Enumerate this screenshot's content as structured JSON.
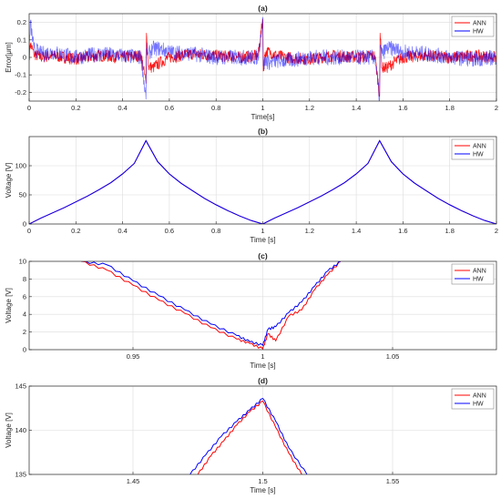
{
  "colors": {
    "ann": "#ff0000",
    "hw": "#0000ff",
    "grid": "#dcdcdc",
    "axis": "#262626"
  },
  "chart_data": [
    {
      "type": "line",
      "title": "(a)",
      "xlabel": "Time[s]",
      "ylabel": "Error[μm]",
      "xlim": [
        0,
        2
      ],
      "ylim": [
        -0.25,
        0.25
      ],
      "xticks": [
        "0",
        "0.2",
        "0.4",
        "0.6",
        "0.8",
        "1",
        "1.2",
        "1.4",
        "1.6",
        "1.8",
        "2"
      ],
      "yticks": [
        "-0.2",
        "-0.1",
        "0",
        "0.1",
        "0.2"
      ],
      "grid": true,
      "legend": "top-right",
      "series": [
        {
          "name": "ANN",
          "x": [
            0,
            0.005,
            0.02,
            0.05,
            0.1,
            0.2,
            0.3,
            0.4,
            0.48,
            0.5,
            0.502,
            0.51,
            0.53,
            0.56,
            0.6,
            0.7,
            0.8,
            0.9,
            0.98,
            1.0,
            1.002,
            1.01,
            1.03,
            1.06,
            1.1,
            1.2,
            1.3,
            1.4,
            1.48,
            1.5,
            1.502,
            1.51,
            1.53,
            1.56,
            1.6,
            1.7,
            1.8,
            1.9,
            2.0
          ],
          "y": [
            0.0,
            0.08,
            0.02,
            0.0,
            0.01,
            -0.01,
            0.01,
            0.0,
            0.01,
            -0.15,
            0.14,
            -0.05,
            -0.06,
            -0.03,
            0.0,
            0.02,
            0.01,
            0.0,
            0.01,
            0.22,
            -0.08,
            0.03,
            0.03,
            0.01,
            0.0,
            -0.01,
            0.01,
            0.0,
            0.01,
            -0.22,
            0.14,
            -0.06,
            -0.06,
            -0.03,
            0.0,
            0.01,
            0.0,
            0.01,
            0.0
          ]
        },
        {
          "name": "HW",
          "x": [
            0,
            0.005,
            0.02,
            0.05,
            0.1,
            0.2,
            0.3,
            0.4,
            0.48,
            0.5,
            0.502,
            0.51,
            0.53,
            0.56,
            0.6,
            0.7,
            0.8,
            0.9,
            0.98,
            1.0,
            1.002,
            1.01,
            1.03,
            1.06,
            1.1,
            1.2,
            1.3,
            1.4,
            1.48,
            1.5,
            1.502,
            1.51,
            1.53,
            1.56,
            1.6,
            1.7,
            1.8,
            1.9,
            2.0
          ],
          "y": [
            0.0,
            0.2,
            0.05,
            0.02,
            0.03,
            0.0,
            0.02,
            0.01,
            0.0,
            -0.24,
            0.05,
            0.02,
            0.05,
            0.05,
            0.03,
            0.02,
            0.0,
            0.0,
            0.0,
            0.23,
            -0.05,
            -0.02,
            -0.03,
            -0.02,
            -0.02,
            0.0,
            0.0,
            0.0,
            0.0,
            -0.24,
            0.06,
            0.02,
            0.05,
            0.05,
            0.03,
            0.02,
            0.0,
            -0.01,
            0.0
          ]
        }
      ]
    },
    {
      "type": "line",
      "title": "(b)",
      "xlabel": "Time [s]",
      "ylabel": "Voltage [V]",
      "xlim": [
        0,
        2
      ],
      "ylim": [
        0,
        150
      ],
      "xticks": [
        "0",
        "0.2",
        "0.4",
        "0.6",
        "0.8",
        "1",
        "1.2",
        "1.4",
        "1.6",
        "1.8",
        "2"
      ],
      "yticks": [
        "0",
        "50",
        "100"
      ],
      "grid": true,
      "legend": "top-right",
      "series": [
        {
          "name": "ANN",
          "x": [
            0,
            0.05,
            0.1,
            0.15,
            0.2,
            0.25,
            0.3,
            0.35,
            0.4,
            0.45,
            0.5,
            0.55,
            0.6,
            0.65,
            0.7,
            0.75,
            0.8,
            0.85,
            0.9,
            0.95,
            1.0,
            1.05,
            1.1,
            1.15,
            1.2,
            1.25,
            1.3,
            1.35,
            1.4,
            1.45,
            1.5,
            1.55,
            1.6,
            1.65,
            1.7,
            1.75,
            1.8,
            1.85,
            1.9,
            1.95,
            2.0
          ],
          "y": [
            0,
            10,
            19,
            28,
            38,
            48,
            59,
            71,
            86,
            104,
            143,
            107,
            86,
            70,
            57,
            44,
            33,
            23,
            14,
            6,
            0,
            10,
            19,
            28,
            38,
            48,
            59,
            71,
            86,
            104,
            143,
            107,
            86,
            70,
            57,
            44,
            33,
            23,
            14,
            6,
            0
          ]
        },
        {
          "name": "HW",
          "x": [
            0,
            0.05,
            0.1,
            0.15,
            0.2,
            0.25,
            0.3,
            0.35,
            0.4,
            0.45,
            0.5,
            0.55,
            0.6,
            0.65,
            0.7,
            0.75,
            0.8,
            0.85,
            0.9,
            0.95,
            1.0,
            1.05,
            1.1,
            1.15,
            1.2,
            1.25,
            1.3,
            1.35,
            1.4,
            1.45,
            1.5,
            1.55,
            1.6,
            1.65,
            1.7,
            1.75,
            1.8,
            1.85,
            1.9,
            1.95,
            2.0
          ],
          "y": [
            0,
            10,
            19,
            28,
            38,
            48,
            59,
            71,
            86,
            104,
            143,
            107,
            86,
            70,
            57,
            44,
            33,
            23,
            14,
            6,
            0,
            10,
            19,
            28,
            38,
            48,
            59,
            71,
            86,
            104,
            143,
            107,
            86,
            70,
            57,
            44,
            33,
            23,
            14,
            6,
            0
          ]
        }
      ]
    },
    {
      "type": "line",
      "title": "(c)",
      "xlabel": "Time [s]",
      "ylabel": "Voltage [V]",
      "xlim": [
        0.91,
        1.09
      ],
      "ylim": [
        0,
        10
      ],
      "xticks": [
        "0.95",
        "1",
        "1.05"
      ],
      "yticks": [
        "0",
        "2",
        "4",
        "6",
        "8",
        "10"
      ],
      "grid": true,
      "legend": "top-right",
      "series": [
        {
          "name": "ANN",
          "x": [
            0.93,
            0.94,
            0.95,
            0.96,
            0.97,
            0.98,
            0.99,
            0.995,
            1.0,
            1.002,
            1.005,
            1.01,
            1.015,
            1.02,
            1.025,
            1.03
          ],
          "y": [
            10,
            9.0,
            7.3,
            5.6,
            4.1,
            2.5,
            1.2,
            0.7,
            0.1,
            1.8,
            1.0,
            3.8,
            4.5,
            6.8,
            8.5,
            10
          ]
        },
        {
          "name": "HW",
          "x": [
            0.93,
            0.94,
            0.95,
            0.96,
            0.97,
            0.98,
            0.99,
            0.995,
            1.0,
            1.002,
            1.005,
            1.01,
            1.015,
            1.02,
            1.025,
            1.03
          ],
          "y": [
            10,
            9.6,
            7.8,
            6.1,
            4.5,
            2.9,
            1.6,
            0.9,
            0.5,
            2.3,
            2.6,
            4.2,
            5.4,
            7.2,
            8.9,
            10
          ]
        }
      ]
    },
    {
      "type": "line",
      "title": "(d)",
      "xlabel": "Time [s]",
      "ylabel": "Voltage [V]",
      "xlim": [
        1.41,
        1.59
      ],
      "ylim": [
        135,
        145
      ],
      "xticks": [
        "1.45",
        "1.5",
        "1.55"
      ],
      "yticks": [
        "135",
        "140",
        "145"
      ],
      "grid": true,
      "legend": "top-right",
      "series": [
        {
          "name": "ANN",
          "x": [
            1.475,
            1.48,
            1.485,
            1.49,
            1.495,
            1.5,
            1.505,
            1.51,
            1.515
          ],
          "y": [
            135,
            137.1,
            138.8,
            140.6,
            142.1,
            143.3,
            140.3,
            137.4,
            135
          ]
        },
        {
          "name": "HW",
          "x": [
            1.472,
            1.478,
            1.484,
            1.49,
            1.495,
            1.5,
            1.505,
            1.51,
            1.517
          ],
          "y": [
            135,
            137.2,
            139.3,
            141.0,
            142.3,
            143.6,
            141.0,
            138.0,
            135
          ]
        }
      ]
    }
  ]
}
